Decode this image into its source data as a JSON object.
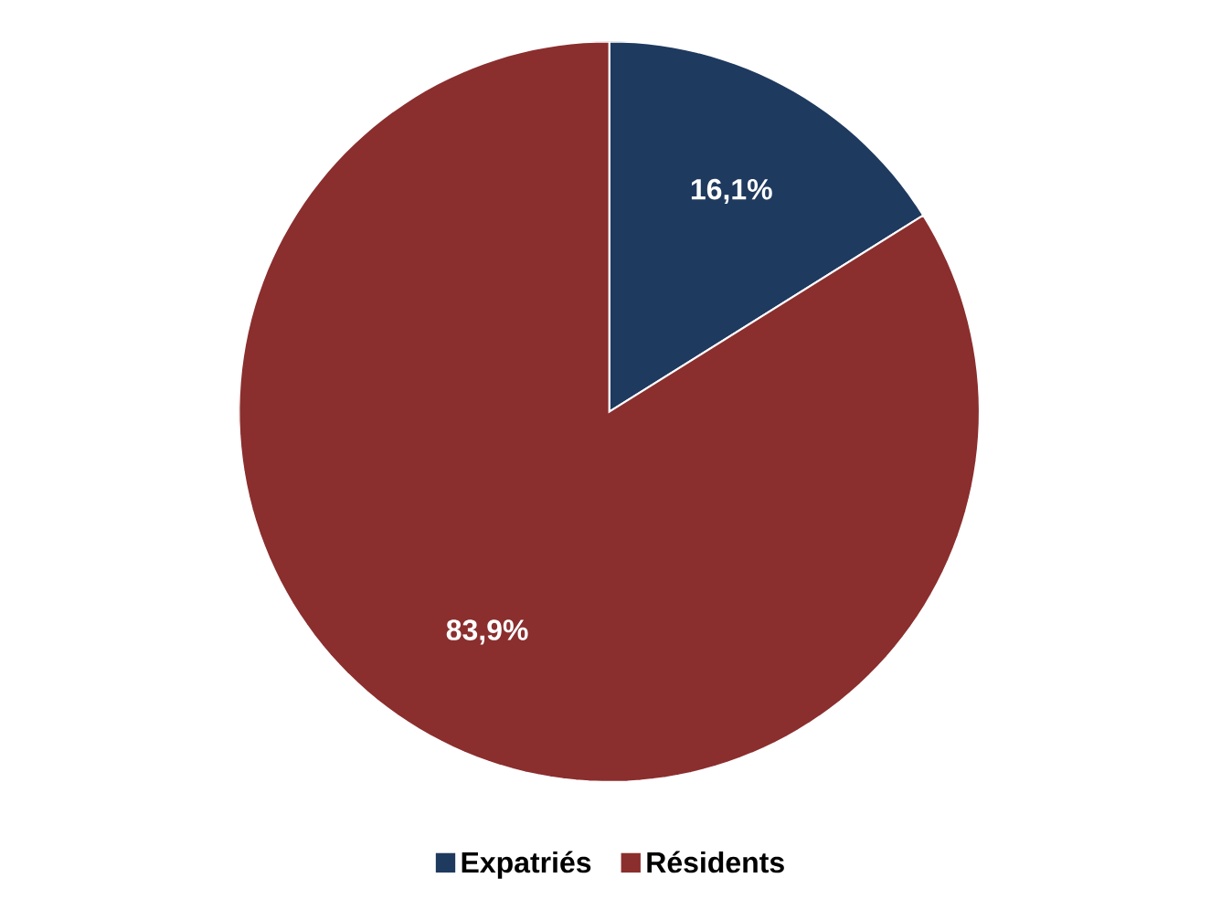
{
  "chart_data": {
    "type": "pie",
    "categories": [
      "Expatriés",
      "Résidents"
    ],
    "values": [
      16.1,
      83.9
    ],
    "colors": [
      "#1f3a5f",
      "#8b2e2e"
    ],
    "value_labels": [
      "16,1%",
      "83,9%"
    ],
    "legend": "bottom"
  }
}
